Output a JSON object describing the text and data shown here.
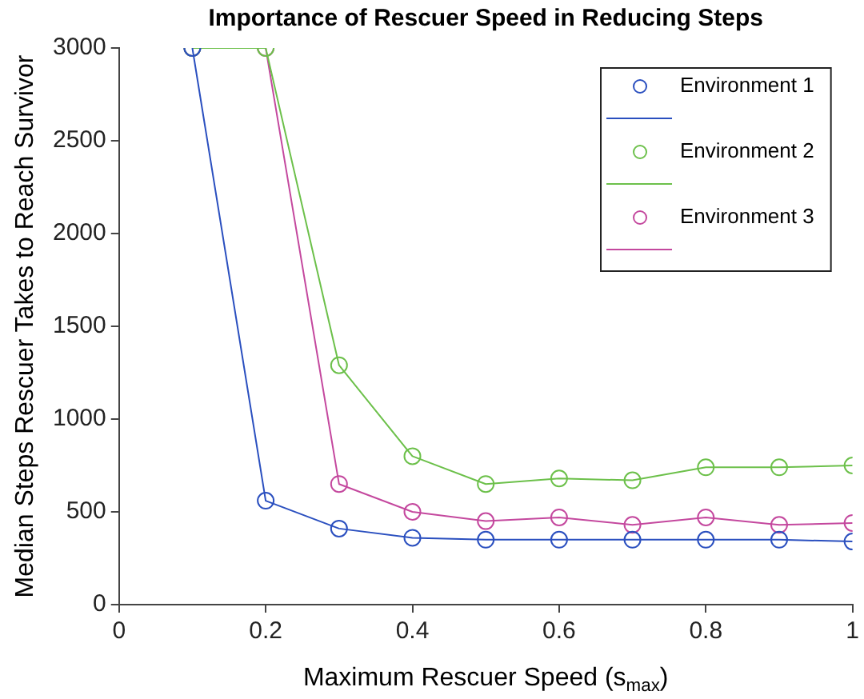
{
  "chart_data": {
    "type": "line",
    "title": "Importance of Rescuer Speed in Reducing Steps",
    "xlabel": "Maximum Rescuer Speed (s$_{max}$)",
    "ylabel": "Median Steps Rescuer Takes to Reach Survivor",
    "x": [
      0.1,
      0.2,
      0.3,
      0.4,
      0.5,
      0.6,
      0.7,
      0.8,
      0.9,
      1.0
    ],
    "series": [
      {
        "name": "Environment 1",
        "color": "#2a4fbf",
        "values": [
          3000,
          560,
          410,
          360,
          350,
          350,
          350,
          350,
          350,
          340
        ]
      },
      {
        "name": "Environment 2",
        "color": "#6cc04a",
        "values": [
          3000,
          3000,
          1290,
          800,
          650,
          680,
          670,
          740,
          740,
          750
        ]
      },
      {
        "name": "Environment 3",
        "color": "#c4489e",
        "values": [
          3000,
          3000,
          650,
          500,
          450,
          470,
          430,
          470,
          430,
          440
        ]
      }
    ],
    "xlim": [
      0,
      1
    ],
    "xticks": [
      0,
      0.2,
      0.4,
      0.6,
      0.8,
      1
    ],
    "ylim": [
      0,
      3000
    ],
    "yticks": [
      0,
      500,
      1000,
      1500,
      2000,
      2500,
      3000
    ],
    "grid": false,
    "legend": "top right",
    "marker": "circle",
    "line_style": "solid"
  }
}
